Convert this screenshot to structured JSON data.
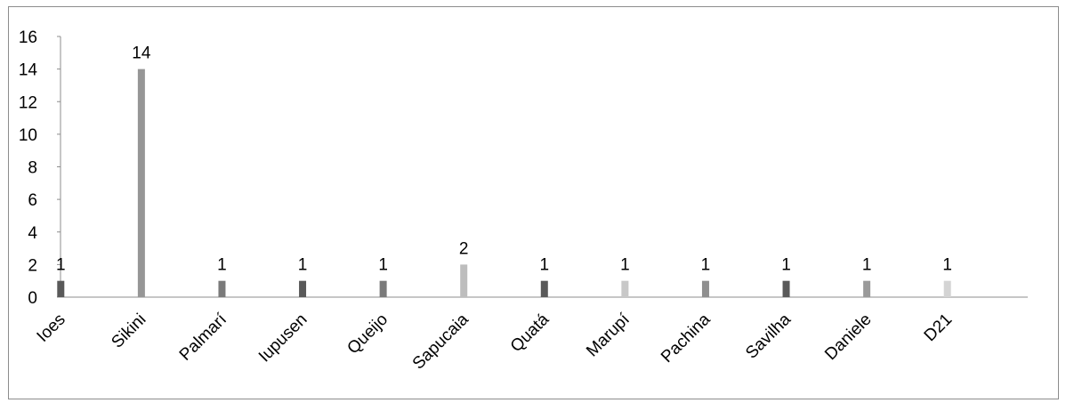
{
  "chart_data": {
    "type": "bar",
    "title": "",
    "xlabel": "",
    "ylabel": "",
    "categories": [
      "Ioes",
      "Sikini",
      "Palmarí",
      "Iupusen",
      "Queijo",
      "Sapucaia",
      "Quatá",
      "Marupí",
      "Pachina",
      "Savilha",
      "Daniele",
      "D21"
    ],
    "values": [
      1,
      14,
      1,
      1,
      1,
      2,
      1,
      1,
      1,
      1,
      1,
      1
    ],
    "data_labels": [
      "1",
      "14",
      "1",
      "1",
      "1",
      "2",
      "1",
      "1",
      "1",
      "1",
      "1",
      "1"
    ],
    "bar_colors": [
      "#595959",
      "#969696",
      "#7a7a7a",
      "#595959",
      "#7a7a7a",
      "#bdbdbd",
      "#595959",
      "#c8c8c8",
      "#8f8f8f",
      "#595959",
      "#9a9a9a",
      "#d4d4d4"
    ],
    "ylim": [
      0,
      16
    ],
    "yticks": [
      "0",
      "2",
      "4",
      "6",
      "8",
      "10",
      "12",
      "14",
      "16"
    ],
    "grid": false,
    "legend": "none",
    "colors": {
      "axis": "#8c8c8c",
      "text": "#000000"
    }
  }
}
